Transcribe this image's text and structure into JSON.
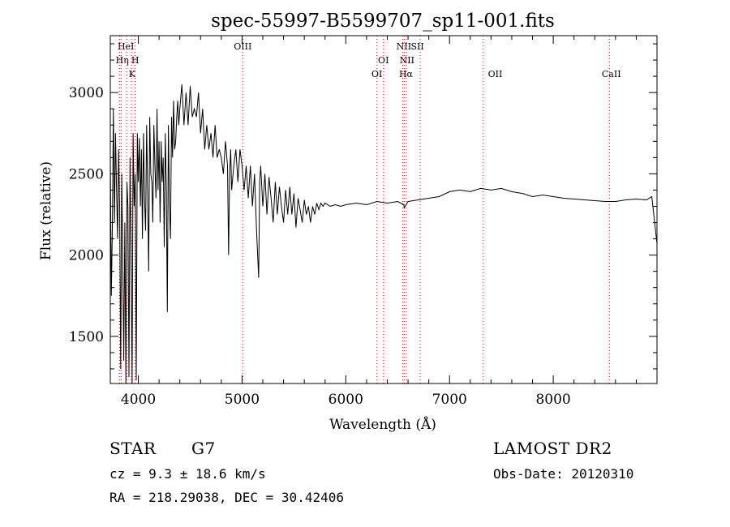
{
  "chart_data": {
    "type": "line",
    "title": "spec-55997-B5599707_sp11-001.fits",
    "xlabel": "Wavelength (Å)",
    "ylabel": "Flux (relative)",
    "xlim": [
      3730,
      9000
    ],
    "ylim": [
      1210,
      3350
    ],
    "xticks": [
      4000,
      5000,
      6000,
      7000,
      8000
    ],
    "yticks": [
      1500,
      2000,
      2500,
      3000
    ],
    "grid": false,
    "line_color": "#000000",
    "marker_color": "#ff0000",
    "series": [
      {
        "x": [
          3730,
          3740,
          3750,
          3760,
          3770,
          3780,
          3790,
          3800,
          3810,
          3820,
          3830,
          3840,
          3850,
          3860,
          3870,
          3880,
          3890,
          3900,
          3910,
          3920,
          3930,
          3940,
          3950,
          3960,
          3970,
          3980,
          3990,
          4000,
          4010,
          4020,
          4030,
          4040,
          4050,
          4060,
          4070,
          4080,
          4090,
          4100,
          4110,
          4120,
          4130,
          4140,
          4150,
          4160,
          4170,
          4180,
          4190,
          4200,
          4210,
          4220,
          4230,
          4240,
          4250,
          4260,
          4270,
          4280,
          4290,
          4300,
          4310,
          4320,
          4330,
          4340,
          4350,
          4360,
          4370,
          4380,
          4390,
          4400,
          4420,
          4440,
          4460,
          4480,
          4500,
          4520,
          4540,
          4560,
          4580,
          4600,
          4620,
          4640,
          4660,
          4680,
          4700,
          4720,
          4740,
          4760,
          4780,
          4800,
          4820,
          4840,
          4860,
          4870,
          4880,
          4890,
          4900,
          4920,
          4940,
          4960,
          4980,
          5000,
          5020,
          5040,
          5060,
          5080,
          5100,
          5120,
          5140,
          5160,
          5170,
          5180,
          5200,
          5220,
          5240,
          5260,
          5280,
          5300,
          5320,
          5340,
          5360,
          5380,
          5400,
          5420,
          5440,
          5460,
          5480,
          5500,
          5520,
          5540,
          5560,
          5580,
          5600,
          5620,
          5640,
          5660,
          5680,
          5700,
          5720,
          5740,
          5760,
          5780,
          5800,
          5850,
          5900,
          5950,
          6000,
          6100,
          6200,
          6300,
          6400,
          6500,
          6560,
          6563,
          6600,
          6700,
          6800,
          6900,
          7000,
          7100,
          7200,
          7300,
          7400,
          7500,
          7600,
          7700,
          7800,
          7900,
          8000,
          8100,
          8200,
          8300,
          8400,
          8500,
          8600,
          8700,
          8800,
          8900,
          8950,
          9000
        ],
        "y": [
          2600,
          1750,
          2200,
          2900,
          2200,
          2750,
          2400,
          2100,
          2650,
          2300,
          1300,
          2500,
          2000,
          1350,
          2200,
          1200,
          2450,
          2300,
          1250,
          2600,
          2000,
          1200,
          2750,
          2300,
          2500,
          1230,
          2750,
          2450,
          2720,
          2300,
          2650,
          2100,
          2750,
          2350,
          2150,
          2800,
          2400,
          1900,
          2850,
          2500,
          2450,
          2200,
          2800,
          2550,
          2350,
          2900,
          2400,
          2700,
          2200,
          2700,
          2450,
          2600,
          2050,
          2750,
          2400,
          1650,
          2800,
          2300,
          2100,
          2850,
          2600,
          2950,
          2650,
          2700,
          2850,
          2950,
          2800,
          2900,
          3050,
          2800,
          3000,
          2800,
          3040,
          2850,
          2900,
          2850,
          3000,
          2750,
          2900,
          2650,
          2800,
          2650,
          2750,
          2600,
          2800,
          2600,
          2650,
          2600,
          2500,
          2700,
          2550,
          2000,
          2500,
          2650,
          2400,
          2550,
          2650,
          2450,
          2650,
          2550,
          2400,
          2550,
          2350,
          2550,
          2300,
          2500,
          2150,
          1860,
          2450,
          2550,
          2300,
          2500,
          2250,
          2480,
          2350,
          2200,
          2450,
          2250,
          2420,
          2300,
          2200,
          2400,
          2250,
          2420,
          2250,
          2380,
          2170,
          2350,
          2280,
          2200,
          2340,
          2250,
          2300,
          2200,
          2300,
          2250,
          2320,
          2280,
          2320,
          2300,
          2320,
          2300,
          2310,
          2300,
          2310,
          2320,
          2310,
          2330,
          2320,
          2330,
          2310,
          2290,
          2330,
          2340,
          2350,
          2360,
          2390,
          2400,
          2390,
          2410,
          2400,
          2410,
          2390,
          2380,
          2360,
          2370,
          2360,
          2350,
          2345,
          2340,
          2335,
          2330,
          2330,
          2340,
          2345,
          2340,
          2360,
          2070
        ]
      }
    ],
    "line_markers": [
      {
        "x": 3820,
        "labels": [
          "HeI"
        ]
      },
      {
        "x": 3835,
        "labels": [
          "Hη"
        ]
      },
      {
        "x": 3889,
        "labels": []
      },
      {
        "x": 3934,
        "labels": [
          "K"
        ]
      },
      {
        "x": 3969,
        "labels": [
          "H"
        ]
      },
      {
        "x": 5007,
        "labels": [
          "OIII"
        ]
      },
      {
        "x": 6300,
        "labels": [
          "OI"
        ]
      },
      {
        "x": 6364,
        "labels": [
          "OI"
        ]
      },
      {
        "x": 6548,
        "labels": [
          "NII"
        ]
      },
      {
        "x": 6563,
        "labels": [
          "Hα"
        ]
      },
      {
        "x": 6584,
        "labels": [
          "NII"
        ]
      },
      {
        "x": 6717,
        "labels": [
          "SII"
        ]
      },
      {
        "x": 7325,
        "labels": [
          "OII"
        ]
      },
      {
        "x": 8542,
        "labels": [
          "CaII"
        ]
      }
    ],
    "line_labels": [
      {
        "text": "HeI",
        "x": 3880,
        "row": 0
      },
      {
        "text": "Hη",
        "x": 3845,
        "row": 1
      },
      {
        "text": "H",
        "x": 3970,
        "row": 1
      },
      {
        "text": "K",
        "x": 3940,
        "row": 2
      },
      {
        "text": "OIII",
        "x": 5007,
        "row": 0
      },
      {
        "text": "OI",
        "x": 6363,
        "row": 1
      },
      {
        "text": "OI",
        "x": 6300,
        "row": 2
      },
      {
        "text": "NII",
        "x": 6560,
        "row": 0
      },
      {
        "text": "SII",
        "x": 6690,
        "row": 0
      },
      {
        "text": "NII",
        "x": 6590,
        "row": 1
      },
      {
        "text": "Hα",
        "x": 6580,
        "row": 2
      },
      {
        "text": "OII",
        "x": 7440,
        "row": 2
      },
      {
        "text": "CaII",
        "x": 8560,
        "row": 2
      }
    ]
  },
  "info": {
    "class": "STAR",
    "subclass": "G7",
    "survey": "LAMOST DR2",
    "cz": "cz = 9.3 ± 18.6 km/s",
    "obs_date": "Obs-Date: 20120310",
    "radec": "RA = 218.29038, DEC =  30.42406"
  }
}
